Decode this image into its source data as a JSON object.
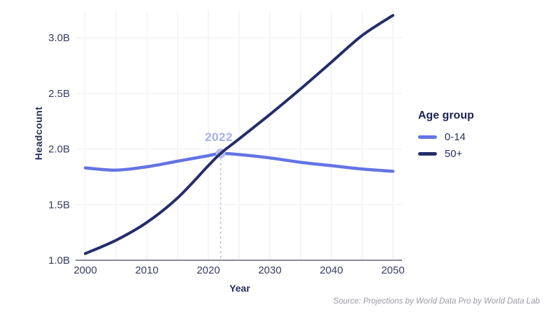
{
  "source": "Source: Projections by World Data Pro by World Data Lab",
  "chart_data": {
    "type": "line",
    "title": "",
    "xlabel": "Year",
    "ylabel": "Headcount",
    "x": [
      2000,
      2005,
      2010,
      2015,
      2020,
      2022,
      2025,
      2030,
      2035,
      2040,
      2045,
      2050
    ],
    "series": [
      {
        "name": "0-14",
        "color": "#6474e3",
        "values": [
          1.83,
          1.81,
          1.84,
          1.89,
          1.94,
          1.96,
          1.95,
          1.92,
          1.88,
          1.85,
          1.82,
          1.8
        ]
      },
      {
        "name": "50+",
        "color": "#232e68",
        "values": [
          1.06,
          1.18,
          1.34,
          1.56,
          1.85,
          1.96,
          2.09,
          2.31,
          2.54,
          2.78,
          3.02,
          3.2
        ]
      }
    ],
    "xlim": [
      2000,
      2050
    ],
    "ylim": [
      1.0,
      3.3
    ],
    "grid": true,
    "x_minor_grid_step": 5,
    "y_ticks": [
      {
        "value": 1.0,
        "label": "1.0B"
      },
      {
        "value": 1.5,
        "label": "1.5B"
      },
      {
        "value": 2.0,
        "label": "2.0B"
      },
      {
        "value": 2.5,
        "label": "2.5B"
      },
      {
        "value": 3.0,
        "label": "3.0B"
      }
    ],
    "x_ticks": [
      {
        "value": 2000,
        "label": "2000"
      },
      {
        "value": 2010,
        "label": "2010"
      },
      {
        "value": 2020,
        "label": "2020"
      },
      {
        "value": 2030,
        "label": "2030"
      },
      {
        "value": 2040,
        "label": "2040"
      },
      {
        "value": 2050,
        "label": "2050"
      }
    ],
    "annotation": {
      "label": "2022",
      "year": 2022,
      "value": 1.96,
      "marker_color": "#b6bdeb",
      "dash_color": "#b8bfee",
      "label_color": "#a6afe8"
    },
    "legend": {
      "title": "Age group",
      "position": "right"
    },
    "colors": {
      "grid": "#f1f1f7",
      "axis_line": "#8d8d96",
      "tick_text": "#363c60"
    }
  }
}
